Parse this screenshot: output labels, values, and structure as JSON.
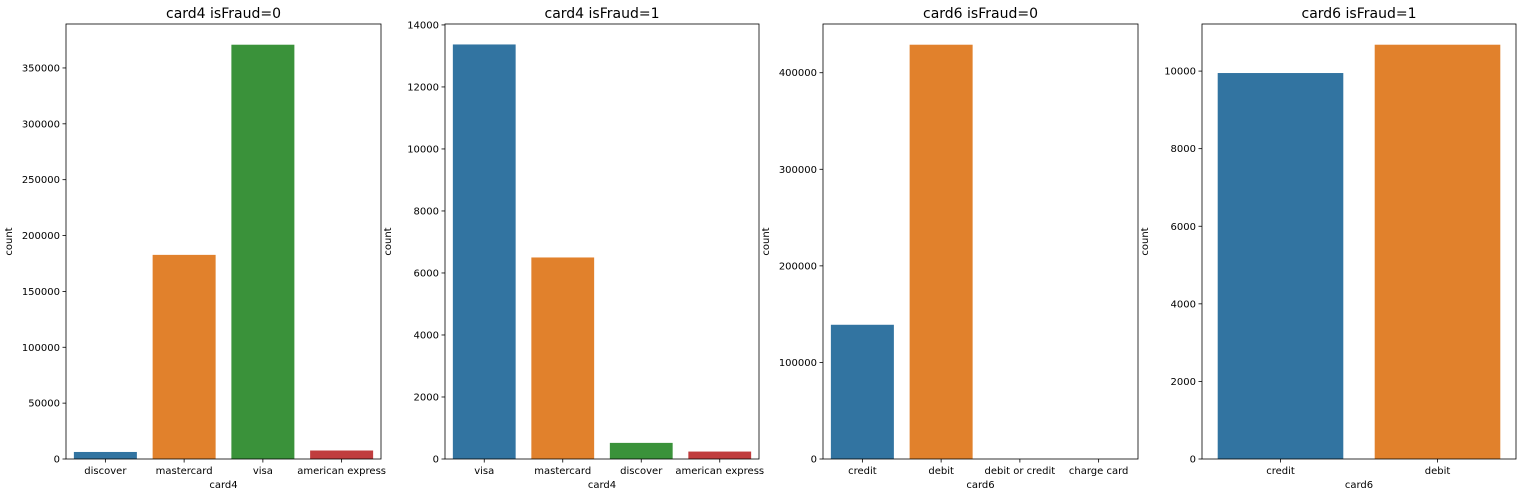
{
  "chart_data": [
    {
      "type": "bar",
      "title": "card4 isFraud=0",
      "xlabel": "card4",
      "ylabel": "count",
      "categories": [
        "discover",
        "mastercard",
        "visa",
        "american express"
      ],
      "values": [
        6300,
        182700,
        370800,
        7600
      ],
      "ylim": [
        0,
        389340
      ],
      "yticks": [
        0,
        50000,
        100000,
        150000,
        200000,
        250000,
        300000,
        350000
      ],
      "colors": [
        "#3274a1",
        "#e1812c",
        "#3a923a",
        "#c03d3e"
      ],
      "grid": false
    },
    {
      "type": "bar",
      "title": "card4 isFraud=1",
      "xlabel": "card4",
      "ylabel": "count",
      "categories": [
        "visa",
        "mastercard",
        "discover",
        "american express"
      ],
      "values": [
        13370,
        6500,
        520,
        240
      ],
      "ylim": [
        0,
        14030
      ],
      "yticks": [
        0,
        2000,
        4000,
        6000,
        8000,
        10000,
        12000,
        14000
      ],
      "colors": [
        "#3274a1",
        "#e1812c",
        "#3a923a",
        "#c03d3e"
      ],
      "grid": false
    },
    {
      "type": "bar",
      "title": "card6 isFraud=0",
      "xlabel": "card6",
      "ylabel": "count",
      "categories": [
        "credit",
        "debit",
        "debit or credit",
        "charge card"
      ],
      "values": [
        139000,
        429000,
        30,
        15
      ],
      "ylim": [
        0,
        450450
      ],
      "yticks": [
        0,
        100000,
        200000,
        300000,
        400000
      ],
      "colors": [
        "#3274a1",
        "#e1812c",
        "#3a923a",
        "#c03d3e"
      ],
      "grid": false
    },
    {
      "type": "bar",
      "title": "card6 isFraud=1",
      "xlabel": "card6",
      "ylabel": "count",
      "categories": [
        "credit",
        "debit"
      ],
      "values": [
        9950,
        10680
      ],
      "ylim": [
        0,
        11214
      ],
      "yticks": [
        0,
        2000,
        4000,
        6000,
        8000,
        10000
      ],
      "colors": [
        "#3274a1",
        "#e1812c"
      ],
      "grid": false
    }
  ]
}
